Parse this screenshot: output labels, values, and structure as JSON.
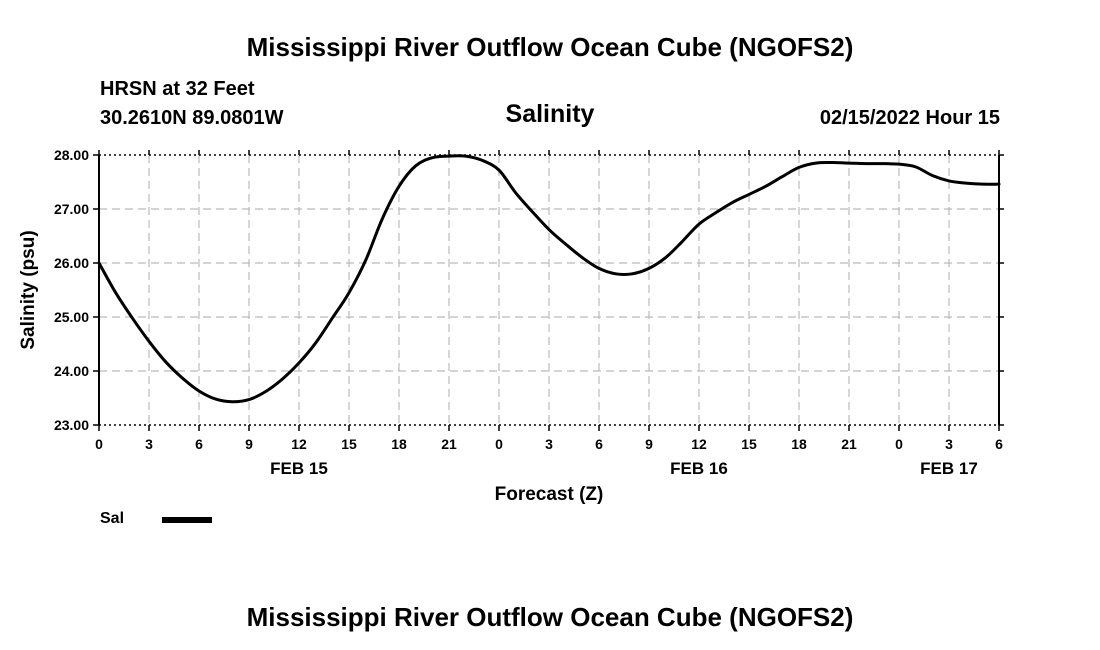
{
  "header": {
    "title": "Mississippi River Outflow Ocean Cube (NGOFS2)",
    "station": "HRSN at 32 Feet",
    "coords": "30.2610N  89.0801W",
    "datetime": "02/15/2022 Hour 15"
  },
  "footer": {
    "title": "Mississippi River Outflow Ocean Cube (NGOFS2)"
  },
  "legend": {
    "label": "Sal"
  },
  "colors": {
    "line": "#000000",
    "grid": "#bbbbbb"
  },
  "chart_data": {
    "type": "line",
    "title": "Salinity",
    "xlabel": "Forecast (Z)",
    "ylabel": "Salinity (psu)",
    "xlim": [
      0,
      54
    ],
    "ylim": [
      23.0,
      28.0
    ],
    "yticks": [
      23.0,
      24.0,
      25.0,
      26.0,
      27.0,
      28.0
    ],
    "ytick_labels": [
      "23.00",
      "24.00",
      "25.00",
      "26.00",
      "27.00",
      "28.00"
    ],
    "xticks": [
      0,
      3,
      6,
      9,
      12,
      15,
      18,
      21,
      24,
      27,
      30,
      33,
      36,
      39,
      42,
      45,
      48,
      51,
      54
    ],
    "xtick_labels": [
      "0",
      "3",
      "6",
      "9",
      "12",
      "15",
      "18",
      "21",
      "0",
      "3",
      "6",
      "9",
      "12",
      "15",
      "18",
      "21",
      "0",
      "3",
      "6"
    ],
    "date_labels": [
      {
        "x": 12,
        "label": "FEB 15"
      },
      {
        "x": 36,
        "label": "FEB 16"
      },
      {
        "x": 51,
        "label": "FEB 17"
      }
    ],
    "series": [
      {
        "name": "Sal",
        "x": [
          0,
          1,
          2,
          3,
          4,
          5,
          6,
          7,
          8,
          9,
          10,
          11,
          12,
          13,
          14,
          15,
          16,
          17,
          18,
          19,
          20,
          21,
          22,
          23,
          24,
          25,
          26,
          27,
          28,
          29,
          30,
          31,
          32,
          33,
          34,
          35,
          36,
          37,
          38,
          39,
          40,
          41,
          42,
          43,
          44,
          45,
          46,
          47,
          48,
          49,
          50,
          51,
          52,
          53,
          54
        ],
        "values": [
          26.0,
          25.45,
          24.98,
          24.55,
          24.17,
          23.87,
          23.63,
          23.48,
          23.43,
          23.47,
          23.62,
          23.85,
          24.15,
          24.52,
          24.98,
          25.45,
          26.05,
          26.82,
          27.42,
          27.8,
          27.95,
          27.98,
          27.98,
          27.9,
          27.72,
          27.3,
          26.95,
          26.62,
          26.35,
          26.1,
          25.9,
          25.8,
          25.8,
          25.9,
          26.1,
          26.4,
          26.72,
          26.93,
          27.12,
          27.27,
          27.42,
          27.6,
          27.77,
          27.85,
          27.86,
          27.85,
          27.84,
          27.84,
          27.83,
          27.78,
          27.62,
          27.52,
          27.48,
          27.46,
          27.46
        ]
      }
    ]
  }
}
